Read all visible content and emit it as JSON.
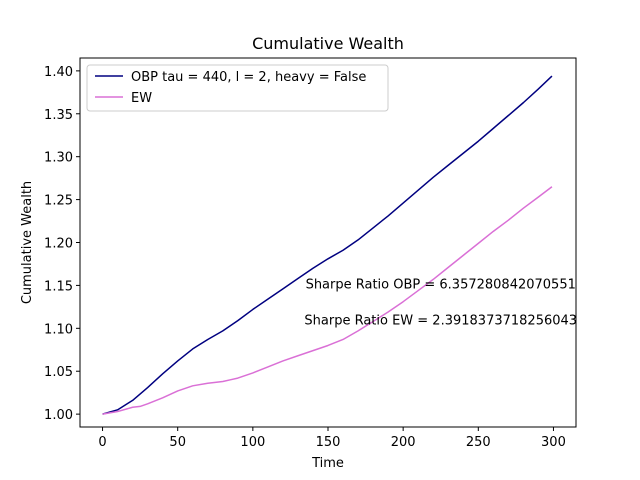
{
  "chart_data": {
    "type": "line",
    "title": "Cumulative Wealth",
    "xlabel": "Time",
    "ylabel": "Cumulative Wealth",
    "xlim": [
      -15,
      315
    ],
    "ylim": [
      0.985,
      1.415
    ],
    "xticks": [
      0,
      50,
      100,
      150,
      200,
      250,
      300
    ],
    "yticks": [
      1.0,
      1.05,
      1.1,
      1.15,
      1.2,
      1.25,
      1.3,
      1.35,
      1.4
    ],
    "grid": false,
    "legend_position": "top-left",
    "series": [
      {
        "name": "OBP tau = 440, l = 2, heavy = False",
        "color": "#000080",
        "x": [
          0,
          10,
          20,
          30,
          40,
          50,
          60,
          70,
          80,
          90,
          100,
          110,
          120,
          130,
          140,
          150,
          160,
          170,
          180,
          190,
          200,
          210,
          220,
          230,
          240,
          250,
          260,
          270,
          280,
          290,
          299
        ],
        "y": [
          1.0,
          1.005,
          1.016,
          1.031,
          1.047,
          1.062,
          1.076,
          1.087,
          1.097,
          1.109,
          1.122,
          1.134,
          1.146,
          1.158,
          1.17,
          1.181,
          1.191,
          1.203,
          1.217,
          1.231,
          1.246,
          1.261,
          1.276,
          1.29,
          1.304,
          1.318,
          1.333,
          1.348,
          1.363,
          1.379,
          1.394
        ]
      },
      {
        "name": "EW",
        "color": "#da70d6",
        "x": [
          0,
          10,
          20,
          25,
          30,
          40,
          50,
          60,
          70,
          80,
          85,
          90,
          100,
          110,
          120,
          130,
          140,
          150,
          160,
          170,
          180,
          190,
          200,
          210,
          220,
          230,
          240,
          250,
          260,
          270,
          280,
          290,
          299
        ],
        "y": [
          1.0,
          1.003,
          1.008,
          1.009,
          1.012,
          1.019,
          1.027,
          1.033,
          1.036,
          1.038,
          1.04,
          1.042,
          1.048,
          1.055,
          1.062,
          1.068,
          1.074,
          1.08,
          1.087,
          1.097,
          1.108,
          1.119,
          1.131,
          1.144,
          1.157,
          1.171,
          1.185,
          1.199,
          1.213,
          1.226,
          1.24,
          1.253,
          1.265
        ]
      }
    ],
    "annotations": [
      {
        "text": "Sharpe Ratio OBP = 6.357280842070551",
        "x": 225,
        "y": 1.152
      },
      {
        "text": "Sharpe Ratio EW = 2.3918373718256043",
        "x": 225,
        "y": 1.11
      }
    ]
  }
}
